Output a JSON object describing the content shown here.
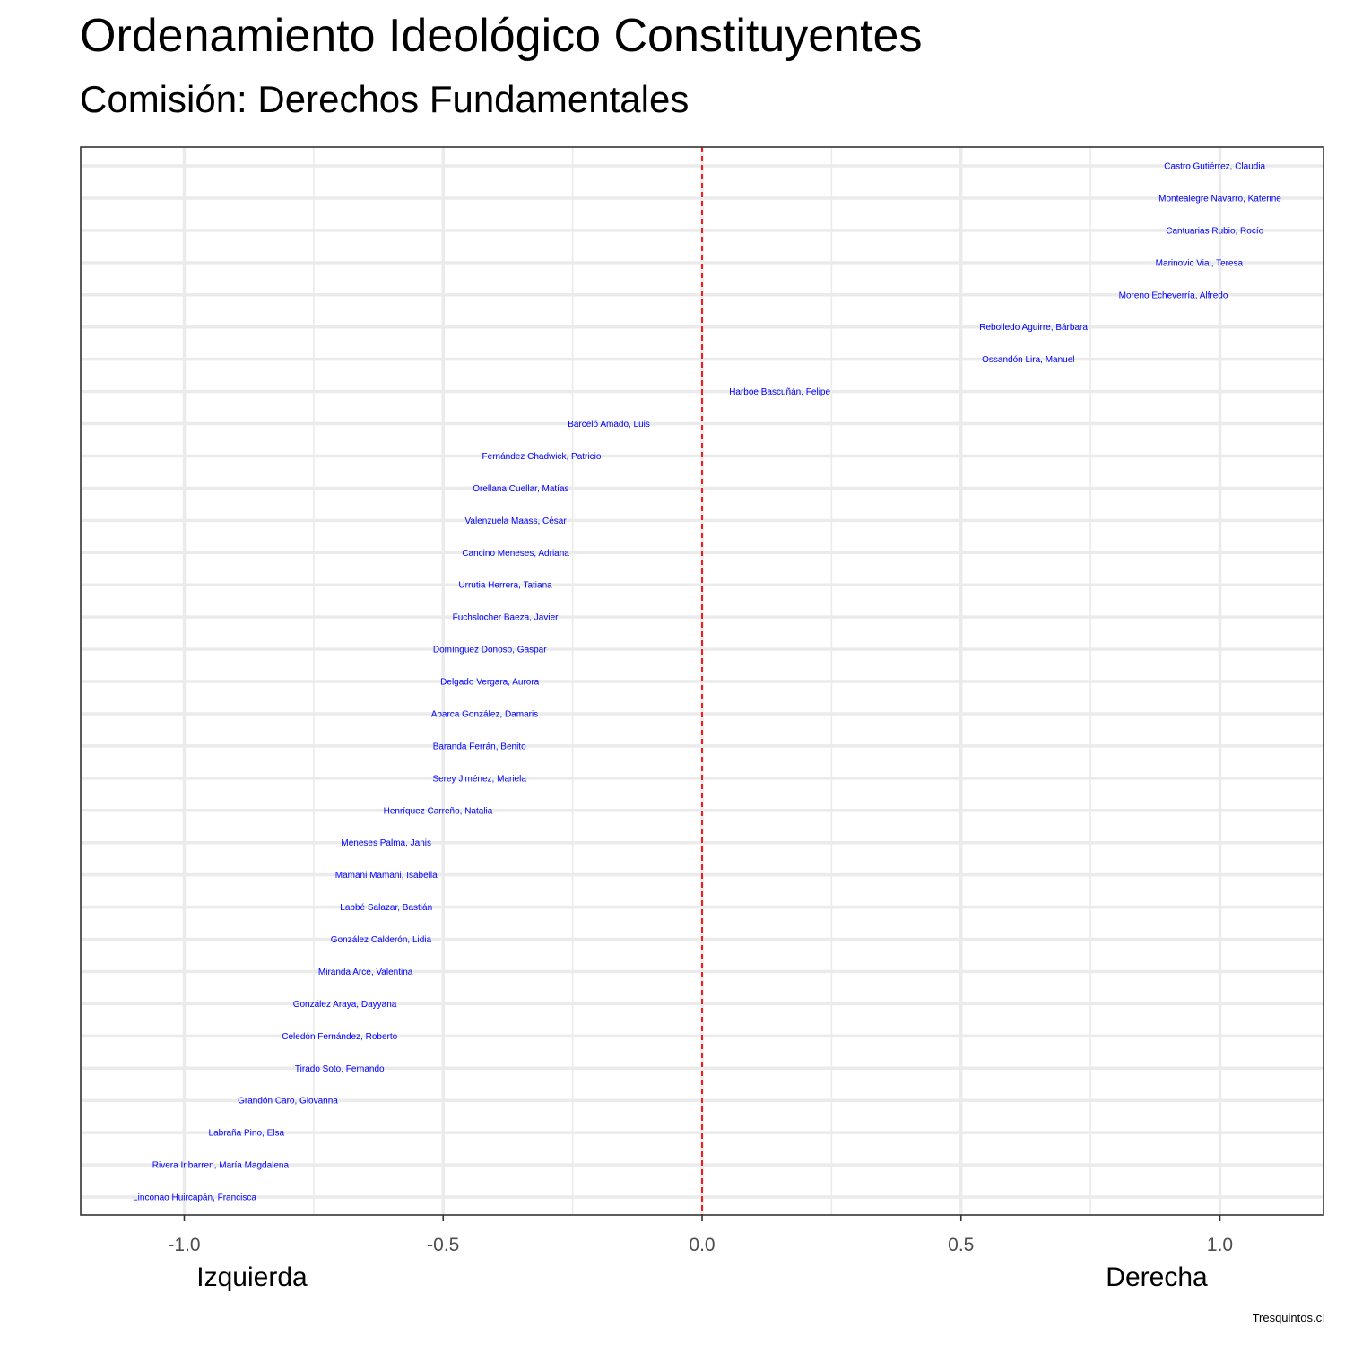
{
  "chart_data": {
    "type": "scatter",
    "title": "Ordenamiento Ideológico Constituyentes",
    "subtitle": "Comisión: Derechos Fundamentales",
    "xlim": [
      -1.2,
      1.2
    ],
    "x_ticks": [
      "-1.0",
      "-0.5",
      "0.0",
      "0.5",
      "1.0"
    ],
    "x_tick_values": [
      -1.0,
      -0.5,
      0.0,
      0.5,
      1.0
    ],
    "x_axis_labels": {
      "left": "Izquierda",
      "right": "Derecha"
    },
    "reference_line": {
      "x": 0.0,
      "color": "#ff0000",
      "style": "dashed"
    },
    "grid": true,
    "label_color": "#0000ff",
    "caption": "Tresquintos.cl",
    "points": [
      {
        "name": "Castro Gutiérrez, Claudia",
        "x": 0.99
      },
      {
        "name": "Montealegre Navarro, Katerine",
        "x": 1.0
      },
      {
        "name": "Cantuarias Rubio, Rocío",
        "x": 0.99
      },
      {
        "name": "Marinovic Vial, Teresa",
        "x": 0.96
      },
      {
        "name": "Moreno Echeverría, Alfredo",
        "x": 0.91
      },
      {
        "name": "Rebolledo Aguirre, Bárbara",
        "x": 0.64
      },
      {
        "name": "Ossandón Lira, Manuel",
        "x": 0.63
      },
      {
        "name": "Harboe Bascuñán, Felipe",
        "x": 0.15
      },
      {
        "name": "Barceló Amado, Luis",
        "x": -0.18
      },
      {
        "name": "Fernández Chadwick, Patricio",
        "x": -0.31
      },
      {
        "name": "Orellana Cuellar, Matías",
        "x": -0.35
      },
      {
        "name": "Valenzuela Maass, César",
        "x": -0.36
      },
      {
        "name": "Cancino Meneses, Adriana",
        "x": -0.36
      },
      {
        "name": "Urrutia Herrera, Tatiana",
        "x": -0.38
      },
      {
        "name": "Fuchslocher Baeza, Javier",
        "x": -0.38
      },
      {
        "name": "Domínguez Donoso, Gaspar",
        "x": -0.41
      },
      {
        "name": "Delgado Vergara, Aurora",
        "x": -0.41
      },
      {
        "name": "Abarca González, Damaris",
        "x": -0.42
      },
      {
        "name": "Baranda Ferrán, Benito",
        "x": -0.43
      },
      {
        "name": "Serey Jiménez, Mariela",
        "x": -0.43
      },
      {
        "name": "Henríquez Carreño, Natalia",
        "x": -0.51
      },
      {
        "name": "Meneses Palma, Janis",
        "x": -0.61
      },
      {
        "name": "Mamani Mamani, Isabella",
        "x": -0.61
      },
      {
        "name": "Labbé Salazar, Bastián",
        "x": -0.61
      },
      {
        "name": "González Calderón, Lidia",
        "x": -0.62
      },
      {
        "name": "Miranda Arce, Valentina",
        "x": -0.65
      },
      {
        "name": "González Araya, Dayyana",
        "x": -0.69
      },
      {
        "name": "Celedón Fernández, Roberto",
        "x": -0.7
      },
      {
        "name": "Tirado Soto, Fernando",
        "x": -0.7
      },
      {
        "name": "Grandón Caro, Giovanna",
        "x": -0.8
      },
      {
        "name": "Labraña Pino, Elsa",
        "x": -0.88
      },
      {
        "name": "Rivera Iribarren, María Magdalena",
        "x": -0.93
      },
      {
        "name": "Linconao Huircapán, Francisca",
        "x": -0.98
      }
    ]
  }
}
